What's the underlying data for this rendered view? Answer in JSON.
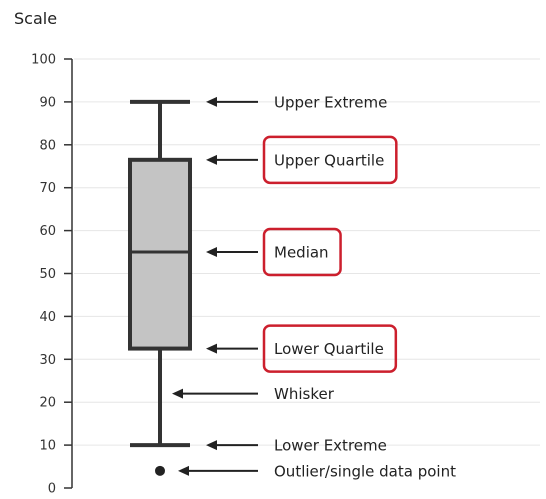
{
  "chart_data": {
    "type": "box",
    "y_axis": {
      "label": "Scale",
      "min": 0,
      "max": 100,
      "ticks": [
        0,
        10,
        20,
        30,
        40,
        50,
        60,
        70,
        80,
        90,
        100
      ],
      "grid": true
    },
    "box": {
      "upper_extreme": 90,
      "upper_quartile": 76.5,
      "median": 55,
      "lower_quartile": 32.5,
      "lower_extreme": 10,
      "outlier": 4
    },
    "annotations": [
      {
        "key": "upper-extreme",
        "label": "Upper Extreme",
        "y": 90,
        "highlighted": false
      },
      {
        "key": "upper-quartile",
        "label": "Upper Quartile",
        "y": 76.5,
        "highlighted": true
      },
      {
        "key": "median",
        "label": "Median",
        "y": 55,
        "highlighted": true
      },
      {
        "key": "lower-quartile",
        "label": "Lower Quartile",
        "y": 32.5,
        "highlighted": true
      },
      {
        "key": "whisker",
        "label": "Whisker",
        "y": 22,
        "highlighted": false
      },
      {
        "key": "lower-extreme",
        "label": "Lower Extreme",
        "y": 10,
        "highlighted": false
      },
      {
        "key": "outlier",
        "label": "Outlier/single data point",
        "y": 4,
        "highlighted": false
      }
    ]
  },
  "colors": {
    "box_fill": "#c4c4c4",
    "stroke": "#333333",
    "highlight": "#cc1f2d",
    "grid": "#e6e6e6"
  }
}
